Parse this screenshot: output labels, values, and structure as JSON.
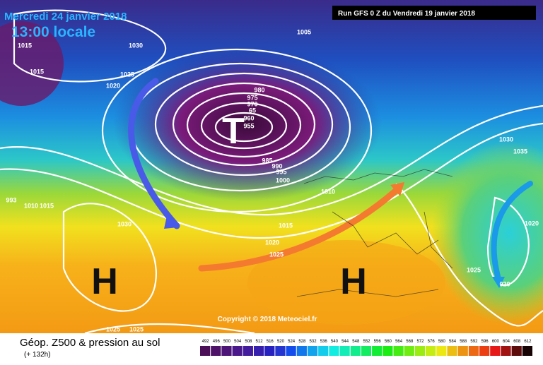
{
  "header": {
    "date": "Mercredi 24 janvier 2018",
    "time": "13:00 locale",
    "run": "Run GFS 0 Z du Vendredi 19 janvier 2018"
  },
  "map": {
    "pressure_systems": [
      "T",
      "H",
      "H"
    ],
    "isobar_labels": [
      1015,
      1015,
      1030,
      1005,
      1025,
      1020,
      980,
      975,
      970,
      65,
      960,
      955,
      985,
      990,
      995,
      1000,
      1010,
      1015,
      1020,
      1025,
      1030,
      1030,
      1035,
      1020,
      1025,
      "020",
      1025,
      1025,
      993,
      1010,
      1015
    ],
    "copyright": "Copyright © 2018 Meteociel.fr"
  },
  "footer": {
    "title": "Géop. Z500 & pression au sol",
    "lead": "(+ 132h)",
    "scale": [
      492,
      496,
      500,
      504,
      508,
      512,
      516,
      520,
      524,
      528,
      532,
      536,
      540,
      544,
      548,
      552,
      556,
      560,
      564,
      568,
      572,
      576,
      580,
      584,
      588,
      592,
      596,
      600,
      604,
      608,
      612
    ]
  }
}
